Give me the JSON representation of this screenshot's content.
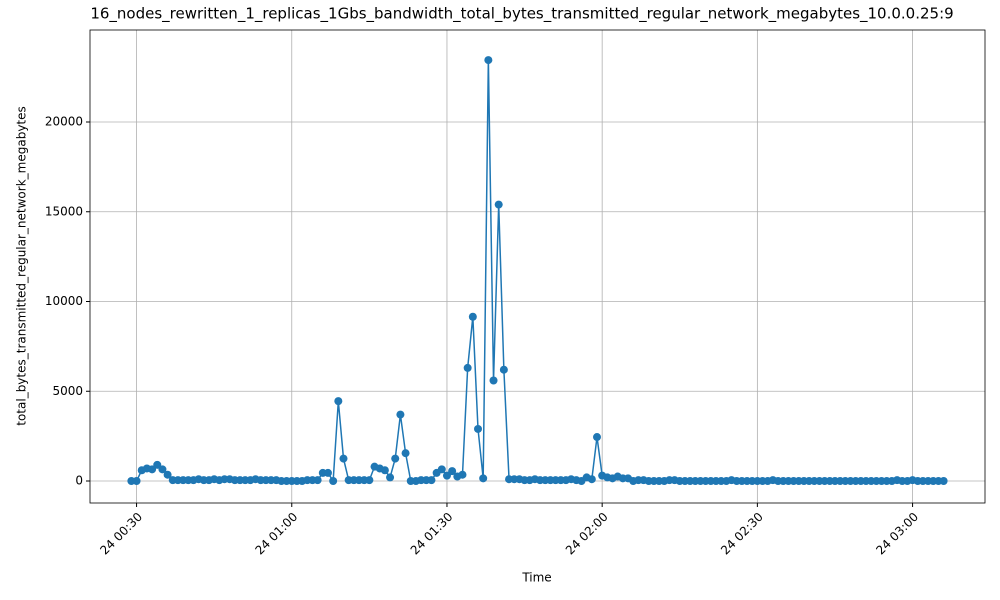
{
  "chart_data": {
    "type": "line",
    "title": "16_nodes_rewritten_1_replicas_1Gbs_bandwidth_total_bytes_transmitted_regular_network_megabytes_10.0.0.25:9",
    "x_label": "Time",
    "y_label": "total_bytes_transmitted_regular_network_megabytes",
    "x": [
      "24 00:29",
      "24 00:30",
      "24 00:31",
      "24 00:32",
      "24 00:33",
      "24 00:34",
      "24 00:35",
      "24 00:36",
      "24 00:37",
      "24 00:38",
      "24 00:39",
      "24 00:40",
      "24 00:41",
      "24 00:42",
      "24 00:43",
      "24 00:44",
      "24 00:45",
      "24 00:46",
      "24 00:47",
      "24 00:48",
      "24 00:49",
      "24 00:50",
      "24 00:51",
      "24 00:52",
      "24 00:53",
      "24 00:54",
      "24 00:55",
      "24 00:56",
      "24 00:57",
      "24 00:58",
      "24 00:59",
      "24 01:00",
      "24 01:01",
      "24 01:02",
      "24 01:03",
      "24 01:04",
      "24 01:05",
      "24 01:06",
      "24 01:07",
      "24 01:08",
      "24 01:09",
      "24 01:10",
      "24 01:11",
      "24 01:12",
      "24 01:13",
      "24 01:14",
      "24 01:15",
      "24 01:16",
      "24 01:17",
      "24 01:18",
      "24 01:19",
      "24 01:20",
      "24 01:21",
      "24 01:22",
      "24 01:23",
      "24 01:24",
      "24 01:25",
      "24 01:26",
      "24 01:27",
      "24 01:28",
      "24 01:29",
      "24 01:30",
      "24 01:31",
      "24 01:32",
      "24 01:33",
      "24 01:34",
      "24 01:35",
      "24 01:36",
      "24 01:37",
      "24 01:38",
      "24 01:39",
      "24 01:40",
      "24 01:41",
      "24 01:42",
      "24 01:43",
      "24 01:44",
      "24 01:45",
      "24 01:46",
      "24 01:47",
      "24 01:48",
      "24 01:49",
      "24 01:50",
      "24 01:51",
      "24 01:52",
      "24 01:53",
      "24 01:54",
      "24 01:55",
      "24 01:56",
      "24 01:57",
      "24 01:58",
      "24 01:59",
      "24 02:00",
      "24 02:01",
      "24 02:02",
      "24 02:03",
      "24 02:04",
      "24 02:05",
      "24 02:06",
      "24 02:07",
      "24 02:08",
      "24 02:09",
      "24 02:10",
      "24 02:11",
      "24 02:12",
      "24 02:13",
      "24 02:14",
      "24 02:15",
      "24 02:16",
      "24 02:17",
      "24 02:18",
      "24 02:19",
      "24 02:20",
      "24 02:21",
      "24 02:22",
      "24 02:23",
      "24 02:24",
      "24 02:25",
      "24 02:26",
      "24 02:27",
      "24 02:28",
      "24 02:29",
      "24 02:30",
      "24 02:31",
      "24 02:32",
      "24 02:33",
      "24 02:34",
      "24 02:35",
      "24 02:36",
      "24 02:37",
      "24 02:38",
      "24 02:39",
      "24 02:40",
      "24 02:41",
      "24 02:42",
      "24 02:43",
      "24 02:44",
      "24 02:45",
      "24 02:46",
      "24 02:47",
      "24 02:48",
      "24 02:49",
      "24 02:50",
      "24 02:51",
      "24 02:52",
      "24 02:53",
      "24 02:54",
      "24 02:55",
      "24 02:56",
      "24 02:57",
      "24 02:58",
      "24 02:59",
      "24 03:00",
      "24 03:01",
      "24 03:02",
      "24 03:03",
      "24 03:04",
      "24 03:05",
      "24 03:06"
    ],
    "series": [
      {
        "color": "#1f77b4",
        "values": [
          0,
          0,
          600,
          700,
          650,
          900,
          650,
          350,
          50,
          50,
          50,
          50,
          50,
          100,
          50,
          50,
          100,
          50,
          100,
          100,
          50,
          50,
          50,
          50,
          100,
          50,
          50,
          50,
          50,
          0,
          0,
          0,
          0,
          0,
          50,
          50,
          50,
          450,
          450,
          0,
          4450,
          1250,
          50,
          50,
          50,
          50,
          50,
          800,
          700,
          600,
          200,
          1250,
          3700,
          1550,
          0,
          0,
          50,
          50,
          50,
          450,
          650,
          300,
          550,
          250,
          350,
          6300,
          9150,
          2900,
          150,
          23450,
          5600,
          15400,
          6200,
          100,
          100,
          100,
          50,
          50,
          100,
          50,
          50,
          50,
          50,
          50,
          50,
          100,
          50,
          0,
          200,
          100,
          2450,
          300,
          200,
          150,
          250,
          150,
          150,
          0,
          50,
          50,
          0,
          0,
          0,
          0,
          50,
          50,
          0,
          0,
          0,
          0,
          0,
          0,
          0,
          0,
          0,
          0,
          50,
          0,
          0,
          0,
          0,
          0,
          0,
          0,
          50,
          0,
          0,
          0,
          0,
          0,
          0,
          0,
          0,
          0,
          0,
          0,
          0,
          0,
          0,
          0,
          0,
          0,
          0,
          0,
          0,
          0,
          0,
          0,
          50,
          0,
          0,
          50,
          0,
          0,
          0,
          0,
          0,
          0
        ]
      }
    ],
    "xlim": [
      "24 00:21",
      "24 03:14"
    ],
    "xticks": [
      "24 00:30",
      "24 01:00",
      "24 01:30",
      "24 02:00",
      "24 02:30",
      "24 03:00"
    ],
    "ylim": [
      -1225,
      25125
    ],
    "yticks": [
      0,
      5000,
      10000,
      15000,
      20000
    ],
    "grid": true
  }
}
